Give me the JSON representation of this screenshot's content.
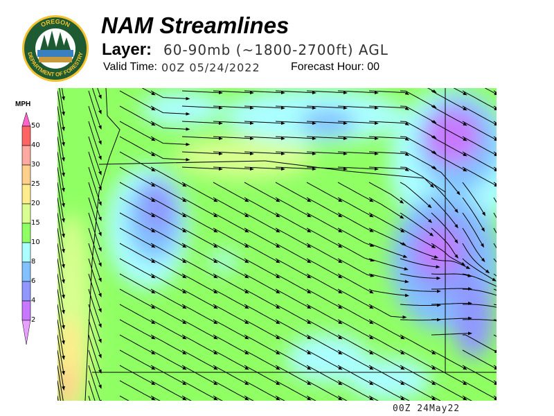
{
  "header": {
    "title": "NAM Streamlines",
    "layer_label": "Layer:",
    "layer_value": "60-90mb (~1800-2700ft) AGL",
    "valid_label": "Valid Time:",
    "valid_value": "00Z 05/24/2022",
    "forecast_hour": "Forecast Hour: 00"
  },
  "logo": {
    "text_top": "OREGON",
    "text_bottom": "DEPARTMENT OF FORESTRY",
    "ring_color": "#1e5a32",
    "text_color": "#f2c230"
  },
  "legend": {
    "unit": "MPH",
    "ticks": [
      "50",
      "40",
      "30",
      "25",
      "20",
      "15",
      "10",
      "8",
      "6",
      "4",
      "2"
    ],
    "colors": [
      "#ff6464",
      "#ffaaa0",
      "#ffd08c",
      "#ffec8c",
      "#d8ff90",
      "#90ff64",
      "#aaffff",
      "#82c0ff",
      "#9098ff",
      "#c878ff"
    ],
    "over_color": "#ff64c8",
    "under_color": "#e8a0ff"
  },
  "map": {
    "stamp": "00Z 24May22"
  }
}
